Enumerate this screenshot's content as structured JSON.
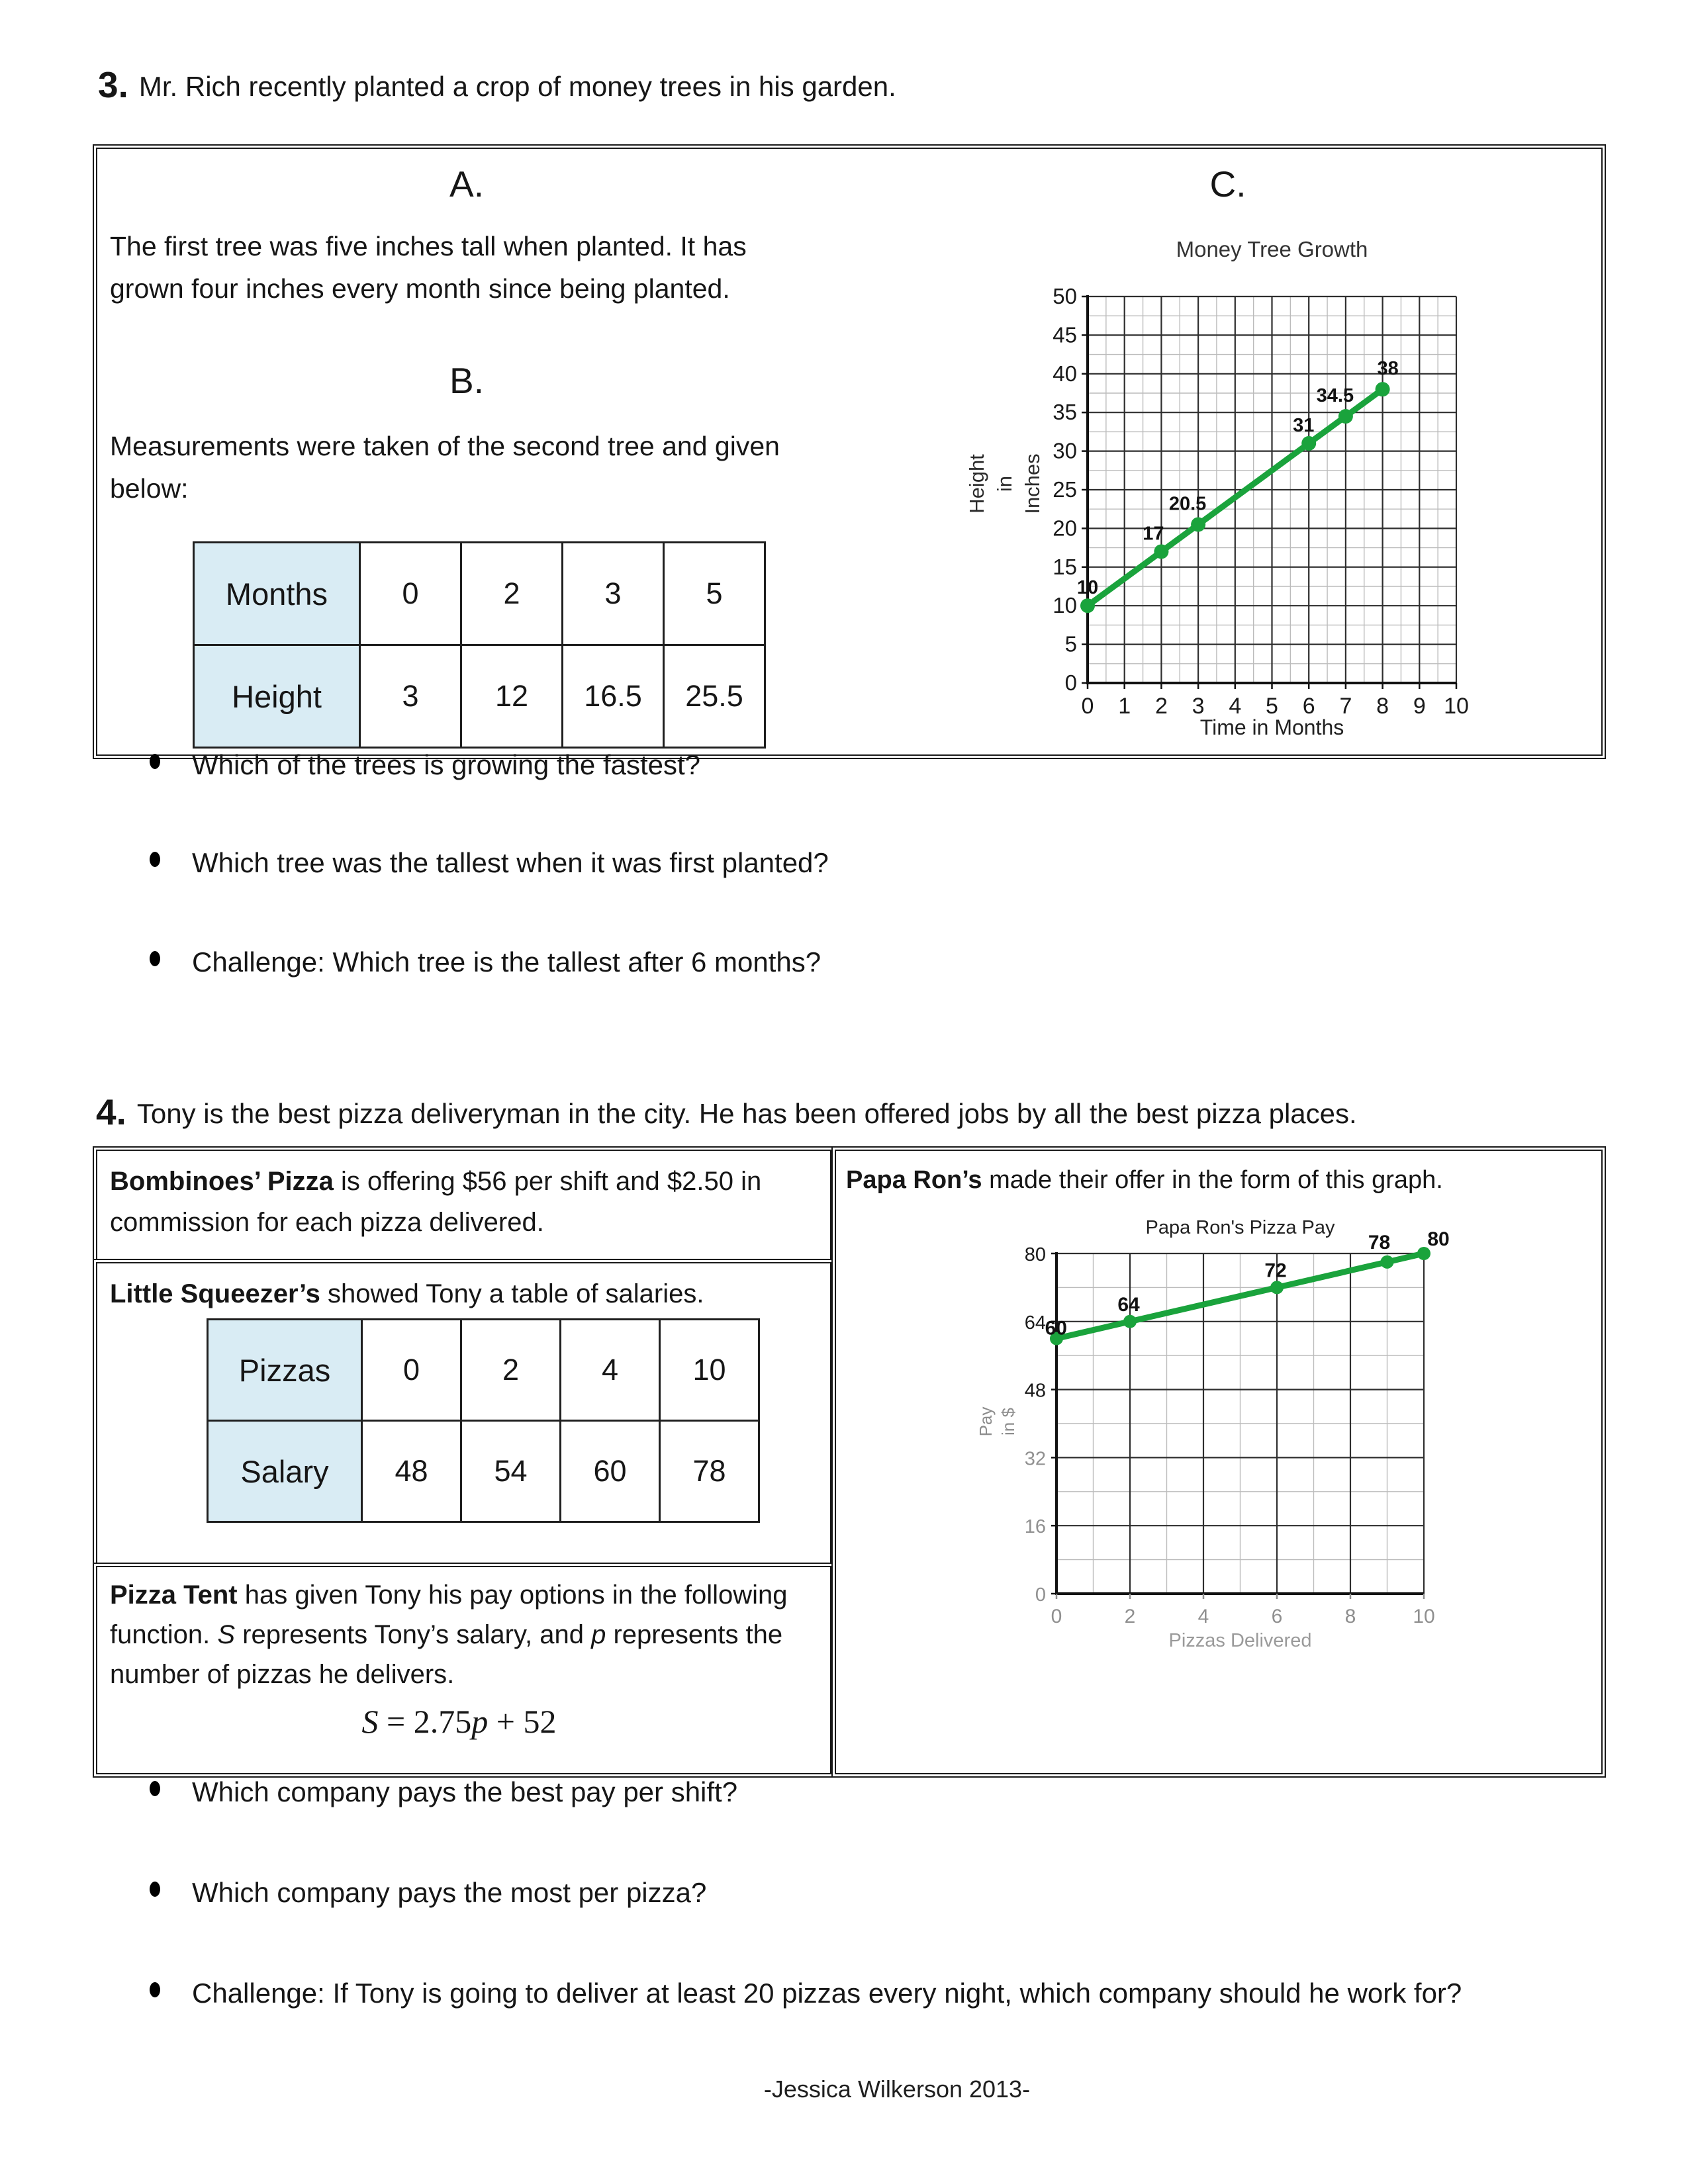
{
  "page": {
    "footer": "-Jessica Wilkerson 2013-"
  },
  "q3": {
    "number": "3.",
    "text": "Mr. Rich recently planted a crop of money trees in his garden.",
    "sectionA": {
      "label": "A.",
      "text": "The first tree was five inches tall when planted. It has grown four inches every month since being planted."
    },
    "sectionB": {
      "label": "B.",
      "text": "Measurements were taken of the second tree and given below:"
    },
    "sectionC": {
      "label": "C."
    },
    "table": {
      "rows": [
        {
          "header": "Months",
          "values": [
            "0",
            "2",
            "3",
            "5"
          ]
        },
        {
          "header": "Height",
          "values": [
            "3",
            "12",
            "16.5",
            "25.5"
          ]
        }
      ]
    },
    "bullets": [
      "Which of the trees is growing the fastest?",
      "Which tree was the tallest when it was first planted?",
      "Challenge: Which tree is the tallest after 6 months?"
    ]
  },
  "q4": {
    "number": "4.",
    "text": "Tony is the best pizza deliveryman in the city. He has been offered jobs by all the best pizza places.",
    "bombinoes": {
      "name": "Bombinoes’ Pizza",
      "rest": " is offering $56 per shift and $2.50 in commission for each pizza delivered."
    },
    "littleSqueezers": {
      "name": "Little Squeezer’s",
      "rest": " showed Tony a table of salaries.",
      "table": {
        "rows": [
          {
            "header": "Pizzas",
            "values": [
              "0",
              "2",
              "4",
              "10"
            ]
          },
          {
            "header": "Salary",
            "values": [
              "48",
              "54",
              "60",
              "78"
            ]
          }
        ]
      }
    },
    "pizzaTent": {
      "name": "Pizza Tent",
      "t1": " has given Tony his pay options in the following function. ",
      "s": "S",
      "t2": " represents Tony’s salary, and ",
      "p": "p",
      "t3": " represents the number of pizzas he delivers.",
      "formula": {
        "p1": "S",
        "p2": " = 2.75",
        "p3": "p",
        "p4": " + 52"
      }
    },
    "papaRons": {
      "name": "Papa Ron’s",
      "rest": " made their offer in the form of this graph."
    },
    "bullets": [
      "Which company pays the best pay per shift?",
      "Which company pays the most per pizza?",
      "Challenge: If Tony is going to deliver at least 20 pizzas every night, which company should he work for?"
    ]
  },
  "chart_data": [
    {
      "id": "money-tree",
      "type": "line",
      "title": "Money Tree Growth",
      "xlabel": "Time in Months",
      "ylabel": "Height in Inches",
      "ylabel_lines": [
        "Height",
        "in",
        "Inches"
      ],
      "x": [
        0,
        2,
        3,
        6,
        7,
        8
      ],
      "y": [
        10,
        17,
        20.5,
        31,
        34.5,
        38
      ],
      "point_labels": [
        "10",
        "17",
        "20.5",
        "31",
        "34.5",
        "38"
      ],
      "xlim": [
        0,
        10
      ],
      "ylim": [
        0,
        50
      ],
      "x_major": 1,
      "x_minor": 0.5,
      "y_major": 5,
      "y_minor": 2.5,
      "x_ticks": [
        0,
        1,
        2,
        3,
        4,
        5,
        6,
        7,
        8,
        9,
        10
      ],
      "y_ticks": [
        0,
        5,
        10,
        15,
        20,
        25,
        30,
        35,
        40,
        45,
        50
      ],
      "line_color": "#1aa33c",
      "grid": "on",
      "legend": "none"
    },
    {
      "id": "papa-rons",
      "type": "line",
      "title": "Papa Ron's Pizza Pay",
      "xlabel": "Pizzas Delivered",
      "ylabel": "Pay in $",
      "ylabel_lines": [
        "Pay",
        "in $"
      ],
      "x": [
        0,
        2,
        6,
        9,
        10
      ],
      "y": [
        60,
        64,
        72,
        78,
        80
      ],
      "point_labels": [
        "60",
        "64",
        "72",
        "78",
        "80"
      ],
      "xlim": [
        0,
        10
      ],
      "ylim": [
        0,
        80
      ],
      "x_major": 2,
      "x_minor": 1,
      "y_major": 16,
      "y_minor": 8,
      "x_ticks": [
        0,
        2,
        4,
        6,
        8,
        10
      ],
      "y_ticks": [
        0,
        16,
        32,
        48,
        64,
        80
      ],
      "line_color": "#1aa33c",
      "grid": "on",
      "legend": "none"
    }
  ]
}
